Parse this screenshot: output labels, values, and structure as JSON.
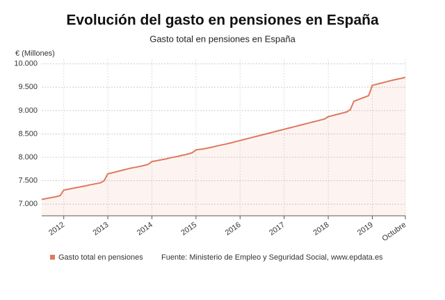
{
  "chart_data": {
    "type": "line",
    "title": "Evolución del gasto en pensiones en España",
    "subtitle": "Gasto total en pensiones en España",
    "y_label": "€ (Millones)",
    "source": "Fuente: Ministerio de Empleo y Seguridad Social, www.epdata.es",
    "categories": [
      null,
      null,
      null,
      null,
      null,
      null,
      "2012",
      null,
      null,
      null,
      null,
      null,
      null,
      null,
      null,
      null,
      null,
      null,
      "2013",
      null,
      null,
      null,
      null,
      null,
      null,
      null,
      null,
      null,
      null,
      null,
      "2014",
      null,
      null,
      null,
      null,
      null,
      null,
      null,
      null,
      null,
      null,
      null,
      "2015",
      null,
      null,
      null,
      null,
      null,
      null,
      null,
      null,
      null,
      null,
      null,
      "2016",
      null,
      null,
      null,
      null,
      null,
      null,
      null,
      null,
      null,
      null,
      null,
      "2017",
      null,
      null,
      null,
      null,
      null,
      null,
      null,
      null,
      null,
      null,
      null,
      "2018",
      null,
      null,
      null,
      null,
      null,
      null,
      null,
      null,
      null,
      null,
      null,
      "2019",
      null,
      null,
      null,
      null,
      null,
      null,
      null,
      null,
      "Octubre"
    ],
    "series": [
      {
        "name": "Gasto total en pensiones",
        "color": "#e0785a",
        "values": [
          7100,
          7115,
          7130,
          7145,
          7160,
          7180,
          7300,
          7315,
          7330,
          7345,
          7360,
          7375,
          7390,
          7410,
          7425,
          7440,
          7455,
          7500,
          7650,
          7665,
          7685,
          7705,
          7725,
          7745,
          7765,
          7780,
          7795,
          7810,
          7830,
          7850,
          7910,
          7925,
          7940,
          7955,
          7970,
          7990,
          8005,
          8020,
          8040,
          8055,
          8075,
          8100,
          8160,
          8170,
          8180,
          8195,
          8210,
          8230,
          8250,
          8265,
          8280,
          8300,
          8320,
          8340,
          8360,
          8380,
          8400,
          8420,
          8440,
          8460,
          8480,
          8500,
          8520,
          8540,
          8560,
          8580,
          8600,
          8620,
          8640,
          8660,
          8680,
          8700,
          8720,
          8740,
          8760,
          8780,
          8800,
          8820,
          8870,
          8890,
          8910,
          8930,
          8950,
          8970,
          9020,
          9200,
          9230,
          9260,
          9290,
          9320,
          9540,
          9560,
          9580,
          9600,
          9620,
          9640,
          9660,
          9675,
          9690,
          9710
        ]
      }
    ],
    "ylim": [
      6750,
      10100
    ],
    "yticks": [
      {
        "value": 7000,
        "label": "7.000"
      },
      {
        "value": 7500,
        "label": "7.500"
      },
      {
        "value": 8000,
        "label": "8.000"
      },
      {
        "value": 8500,
        "label": "8.500"
      },
      {
        "value": 9000,
        "label": "9.000"
      },
      {
        "value": 9500,
        "label": "9.500"
      },
      {
        "value": 10000,
        "label": "10.000"
      }
    ],
    "grid": true
  }
}
